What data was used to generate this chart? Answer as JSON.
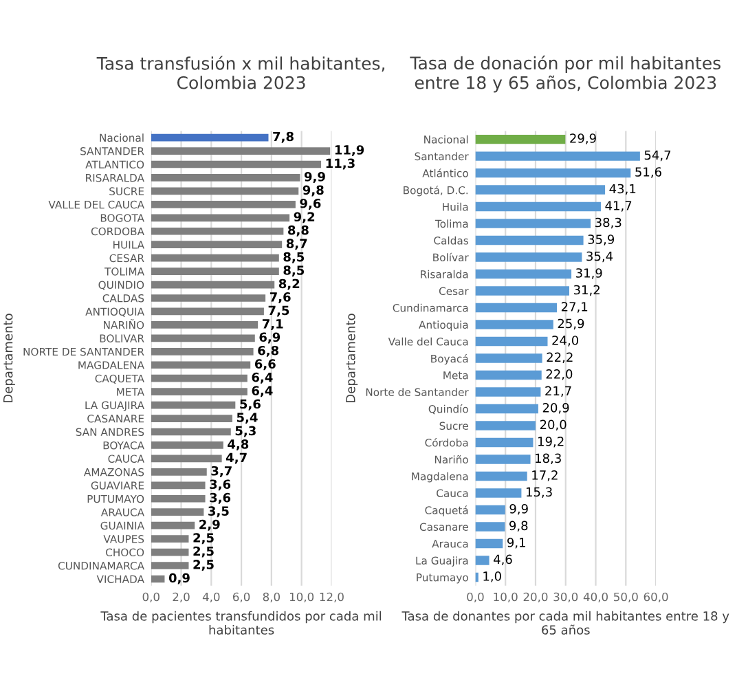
{
  "chart_data": [
    {
      "type": "bar",
      "orientation": "horizontal",
      "title": "Tasa transfusión x mil habitantes,\nColombia 2023",
      "xlabel": "Tasa de pacientes transfundidos por cada mil\nhabitantes",
      "ylabel": "Departamento",
      "categories": [
        "Nacional",
        "SANTANDER",
        "ATLANTICO",
        "RISARALDA",
        "SUCRE",
        "VALLE DEL CAUCA",
        "BOGOTA",
        "CORDOBA",
        "HUILA",
        "CESAR",
        "TOLIMA",
        "QUINDIO",
        "CALDAS",
        "ANTIOQUIA",
        "NARIÑO",
        "BOLIVAR",
        "NORTE DE SANTANDER",
        "MAGDALENA",
        "CAQUETA",
        "META",
        "LA GUAJIRA",
        "CASANARE",
        "SAN ANDRES",
        "BOYACA",
        "CAUCA",
        "AMAZONAS",
        "GUAVIARE",
        "PUTUMAYO",
        "ARAUCA",
        "GUAINIA",
        "VAUPES",
        "CHOCO",
        "CUNDINAMARCA",
        "VICHADA"
      ],
      "values": [
        7.8,
        11.9,
        11.3,
        9.9,
        9.8,
        9.6,
        9.2,
        8.8,
        8.7,
        8.5,
        8.5,
        8.2,
        7.6,
        7.5,
        7.1,
        6.9,
        6.8,
        6.6,
        6.4,
        6.4,
        5.6,
        5.4,
        5.3,
        4.8,
        4.7,
        3.7,
        3.6,
        3.6,
        3.5,
        2.9,
        2.5,
        2.5,
        2.5,
        0.9
      ],
      "value_labels": [
        "7,8",
        "11,9",
        "11,3",
        "9,9",
        "9,8",
        "9,6",
        "9,2",
        "8,8",
        "8,7",
        "8,5",
        "8,5",
        "8,2",
        "7,6",
        "7,5",
        "7,1",
        "6,9",
        "6,8",
        "6,6",
        "6,4",
        "6,4",
        "5,6",
        "5,4",
        "5,3",
        "4,8",
        "4,7",
        "3,7",
        "3,6",
        "3,6",
        "3,5",
        "2,9",
        "2,5",
        "2,5",
        "2,5",
        "0,9"
      ],
      "colors": [
        "#4472c4",
        "#7f7f7f",
        "#7f7f7f",
        "#7f7f7f",
        "#7f7f7f",
        "#7f7f7f",
        "#7f7f7f",
        "#7f7f7f",
        "#7f7f7f",
        "#7f7f7f",
        "#7f7f7f",
        "#7f7f7f",
        "#7f7f7f",
        "#7f7f7f",
        "#7f7f7f",
        "#7f7f7f",
        "#7f7f7f",
        "#7f7f7f",
        "#7f7f7f",
        "#7f7f7f",
        "#7f7f7f",
        "#7f7f7f",
        "#7f7f7f",
        "#7f7f7f",
        "#7f7f7f",
        "#7f7f7f",
        "#7f7f7f",
        "#7f7f7f",
        "#7f7f7f",
        "#7f7f7f",
        "#7f7f7f",
        "#7f7f7f",
        "#7f7f7f",
        "#7f7f7f"
      ],
      "xlim": [
        0,
        12
      ],
      "xticks": [
        {
          "value": 0,
          "label": "0,0"
        },
        {
          "value": 2,
          "label": "2,0"
        },
        {
          "value": 4,
          "label": "4,0"
        },
        {
          "value": 6,
          "label": "6,0"
        },
        {
          "value": 8,
          "label": "8,0"
        },
        {
          "value": 10,
          "label": "10,0"
        },
        {
          "value": 12,
          "label": "12,0"
        }
      ],
      "grid": "x"
    },
    {
      "type": "bar",
      "orientation": "horizontal",
      "title": "Tasa de donación por mil habitantes\nentre 18 y 65 años, Colombia 2023",
      "xlabel": "Tasa de donantes por cada mil habitantes entre 18 y\n65 años",
      "ylabel": "Departamento",
      "categories": [
        "Nacional",
        "Santander",
        "Atlántico",
        "Bogotá, D.C.",
        "Huila",
        "Tolima",
        "Caldas",
        "Bolívar",
        "Risaralda",
        "Cesar",
        "Cundinamarca",
        "Antioquia",
        "Valle del Cauca",
        "Boyacá",
        "Meta",
        "Norte de Santander",
        "Quindío",
        "Sucre",
        "Córdoba",
        "Nariño",
        "Magdalena",
        "Cauca",
        "Caquetá",
        "Casanare",
        "Arauca",
        "La Guajira",
        "Putumayo"
      ],
      "values": [
        29.9,
        54.7,
        51.6,
        43.1,
        41.7,
        38.3,
        35.9,
        35.4,
        31.9,
        31.2,
        27.1,
        25.9,
        24.0,
        22.2,
        22.0,
        21.7,
        20.9,
        20.0,
        19.2,
        18.3,
        17.2,
        15.3,
        9.9,
        9.8,
        9.1,
        4.6,
        1.0
      ],
      "value_labels": [
        "29,9",
        "54,7",
        "51,6",
        "43,1",
        "41,7",
        "38,3",
        "35,9",
        "35,4",
        "31,9",
        "31,2",
        "27,1",
        "25,9",
        "24,0",
        "22,2",
        "22,0",
        "21,7",
        "20,9",
        "20,0",
        "19,2",
        "18,3",
        "17,2",
        "15,3",
        "9,9",
        "9,8",
        "9,1",
        "4,6",
        "1,0"
      ],
      "colors": [
        "#70ad47",
        "#5b9bd5",
        "#5b9bd5",
        "#5b9bd5",
        "#5b9bd5",
        "#5b9bd5",
        "#5b9bd5",
        "#5b9bd5",
        "#5b9bd5",
        "#5b9bd5",
        "#5b9bd5",
        "#5b9bd5",
        "#5b9bd5",
        "#5b9bd5",
        "#5b9bd5",
        "#5b9bd5",
        "#5b9bd5",
        "#5b9bd5",
        "#5b9bd5",
        "#5b9bd5",
        "#5b9bd5",
        "#5b9bd5",
        "#5b9bd5",
        "#5b9bd5",
        "#5b9bd5",
        "#5b9bd5",
        "#5b9bd5"
      ],
      "xlim": [
        0,
        60
      ],
      "xticks": [
        {
          "value": 0,
          "label": "0,0"
        },
        {
          "value": 10,
          "label": "10,0"
        },
        {
          "value": 20,
          "label": "20,0"
        },
        {
          "value": 30,
          "label": "30,0"
        },
        {
          "value": 40,
          "label": "40,0"
        },
        {
          "value": 50,
          "label": "50,0"
        },
        {
          "value": 60,
          "label": "60,0"
        }
      ],
      "grid": "x"
    }
  ]
}
